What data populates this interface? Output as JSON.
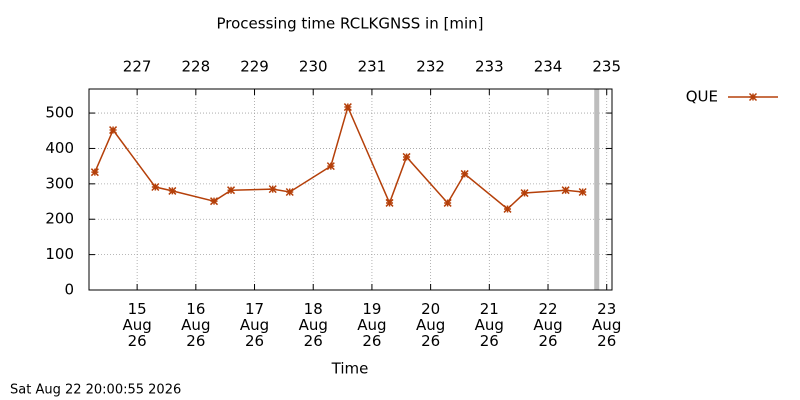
{
  "chart_data": {
    "type": "line",
    "title": "Processing time RCLKGNSS in [min]",
    "x_label": "Time",
    "footer": "Sat Aug 22 20:00:55 2026",
    "x": [
      14.28,
      14.59,
      15.31,
      15.6,
      16.31,
      16.6,
      17.31,
      17.6,
      18.3,
      18.59,
      19.3,
      19.59,
      20.29,
      20.58,
      21.31,
      21.6,
      22.3,
      22.59
    ],
    "series": [
      {
        "name": "QUE",
        "color": "#b5400a",
        "values": [
          333,
          452,
          291,
          280,
          251,
          282,
          285,
          277,
          350,
          517,
          246,
          376,
          246,
          328,
          229,
          274,
          282,
          277
        ]
      }
    ],
    "xlim": [
      14.18,
      23.09
    ],
    "xticks": [
      {
        "value": 15,
        "label": "15\nAug\n26"
      },
      {
        "value": 16,
        "label": "16\nAug\n26"
      },
      {
        "value": 17,
        "label": "17\nAug\n26"
      },
      {
        "value": 18,
        "label": "18\nAug\n26"
      },
      {
        "value": 19,
        "label": "19\nAug\n26"
      },
      {
        "value": 20,
        "label": "20\nAug\n26"
      },
      {
        "value": 21,
        "label": "21\nAug\n26"
      },
      {
        "value": 22,
        "label": "22\nAug\n26"
      },
      {
        "value": 23,
        "label": "23\nAug\n26"
      }
    ],
    "x2lim": [
      226.18,
      235.09
    ],
    "x2ticks": [
      227,
      228,
      229,
      230,
      231,
      232,
      233,
      234,
      235
    ],
    "ylim": [
      0,
      568
    ],
    "yticks": [
      0,
      100,
      200,
      300,
      400,
      500
    ],
    "now_marker": 22.83,
    "grid": true,
    "legend": "right"
  }
}
